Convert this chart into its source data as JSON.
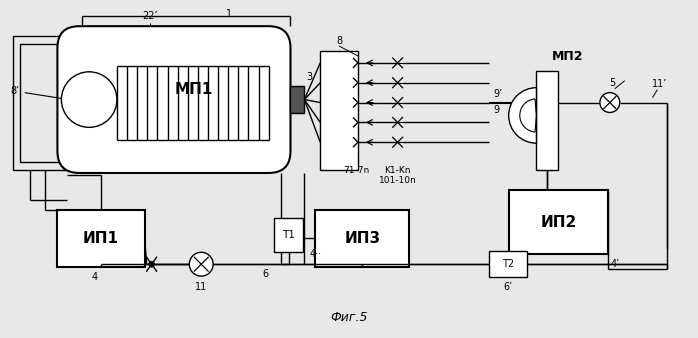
{
  "title": "Фиг.5",
  "bg_color": "#e8e8e8",
  "labels": {
    "mp1": "МП1",
    "mp2": "МП2",
    "ip1": "ИП1",
    "ip2": "ИП2",
    "ip3": "ИП3",
    "f1": "Τ1",
    "f2": "Τ2",
    "num1": "1",
    "num3": "3",
    "num4": "4",
    "num4p": "4’",
    "num4pp": "4··",
    "num5": "5",
    "num6": "6",
    "num6p": "6’",
    "num8": "8",
    "num8p": "8’",
    "num9": "9",
    "num9p": "9’",
    "num11": "11",
    "num11p": "11’",
    "num22p": "22’",
    "valves_label": "K1-Kn\n101-10n",
    "ports_label": "71-7n"
  }
}
